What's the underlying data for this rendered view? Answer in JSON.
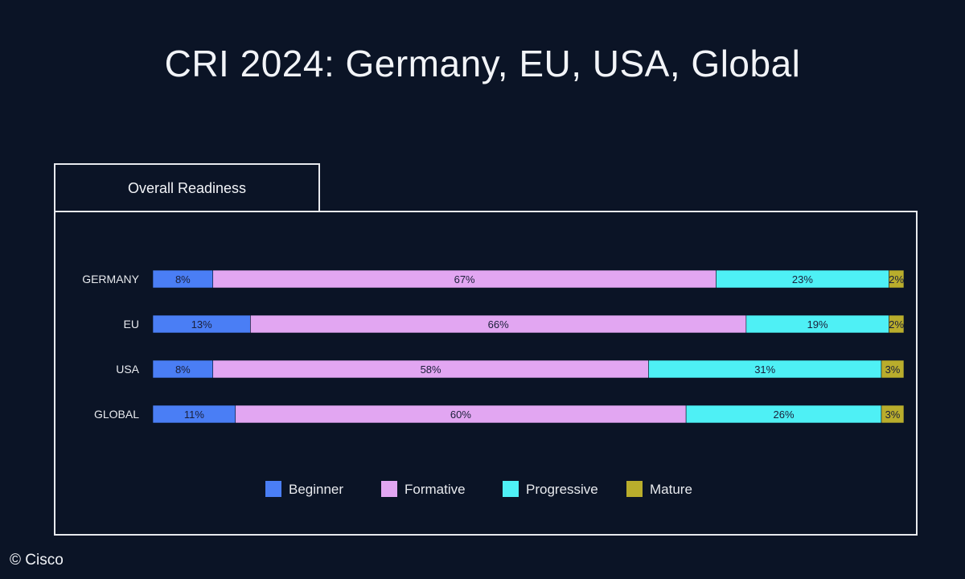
{
  "header": {
    "title": "CRI 2024: Germany, EU, USA, Global"
  },
  "tab": {
    "label": "Overall Readiness"
  },
  "footer": {
    "copyright": "© Cisco"
  },
  "colors": {
    "background": "#0b1426",
    "Beginner": "#4a7ef5",
    "Formative": "#e2a6f2",
    "Progressive": "#4ef0f5",
    "Mature": "#b9ad2c"
  },
  "chart_data": {
    "type": "bar",
    "orientation": "horizontal",
    "stacked": true,
    "title": "",
    "xlabel": "",
    "ylabel": "",
    "legend_position": "bottom",
    "categories": [
      "GERMANY",
      "EU",
      "USA",
      "GLOBAL"
    ],
    "series": [
      {
        "name": "Beginner",
        "values": [
          8,
          13,
          8,
          11
        ],
        "labels": [
          "8%",
          "13%",
          "8%",
          "11%"
        ]
      },
      {
        "name": "Formative",
        "values": [
          67,
          66,
          58,
          60
        ],
        "labels": [
          "67%",
          "66%",
          "58%",
          "60%"
        ]
      },
      {
        "name": "Progressive",
        "values": [
          23,
          19,
          31,
          26
        ],
        "labels": [
          "23%",
          "19%",
          "31%",
          "26%"
        ]
      },
      {
        "name": "Mature",
        "values": [
          2,
          2,
          3,
          3
        ],
        "labels": [
          "2%",
          "2%",
          "3%",
          "3%"
        ]
      }
    ]
  }
}
